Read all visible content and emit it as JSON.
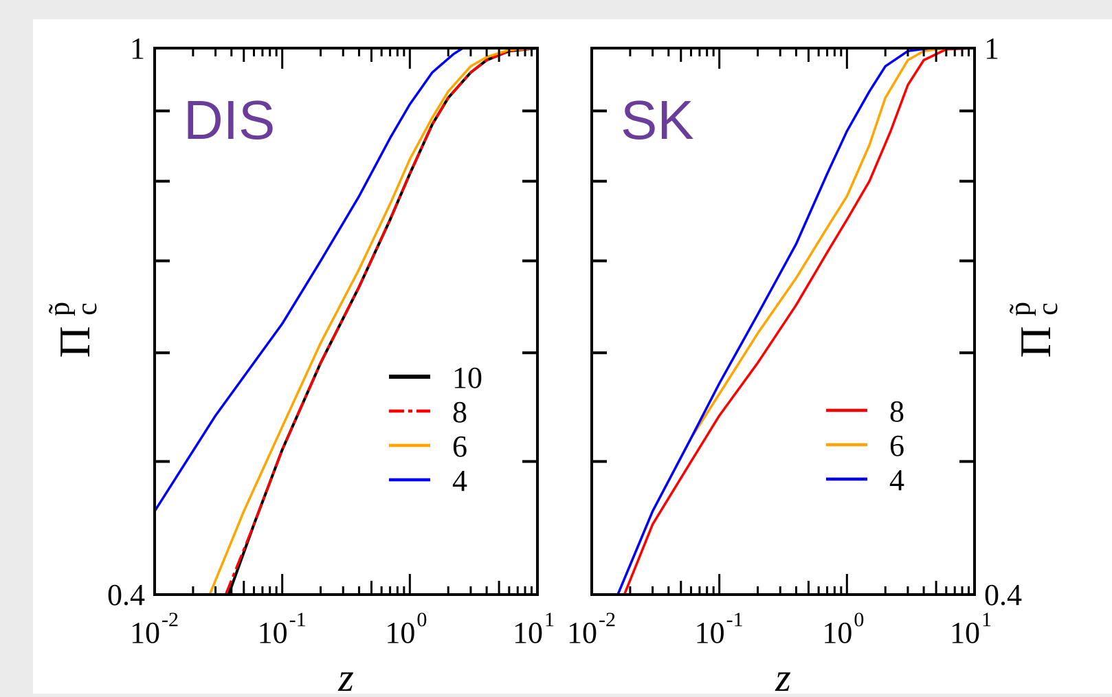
{
  "chart_data": [
    {
      "type": "line",
      "panel_label": "DIS",
      "xlabel": "z",
      "ylabel": "Π",
      "ylabel_sup": "p̃",
      "ylabel_sub": "c",
      "xscale": "log",
      "yscale": "log",
      "xlim": [
        0.01,
        10
      ],
      "ylim": [
        0.4,
        1
      ],
      "xticks": [
        {
          "base": "10",
          "exp": "-2",
          "value": 0.01
        },
        {
          "base": "10",
          "exp": "-1",
          "value": 0.1
        },
        {
          "base": "10",
          "exp": "0",
          "value": 1
        },
        {
          "base": "10",
          "exp": "1",
          "value": 10
        }
      ],
      "yticks": [
        {
          "label": "1",
          "value": 1
        },
        {
          "label": "0.4",
          "value": 0.4
        }
      ],
      "y_axis_side": "left",
      "legend_position": "lower-right",
      "grid": false,
      "series": [
        {
          "name": "10",
          "color": "#000000",
          "dash": "solid",
          "x": [
            0.038,
            0.06,
            0.1,
            0.2,
            0.4,
            0.7,
            1.0,
            1.5,
            2.0,
            3.0,
            4.0,
            6.0,
            10.0
          ],
          "y": [
            0.4,
            0.45,
            0.51,
            0.59,
            0.67,
            0.75,
            0.81,
            0.88,
            0.92,
            0.96,
            0.98,
            0.995,
            1.0
          ]
        },
        {
          "name": "8",
          "color": "#ff0000",
          "dash": "dashdot",
          "x": [
            0.036,
            0.06,
            0.1,
            0.2,
            0.4,
            0.7,
            1.0,
            1.5,
            2.0,
            3.0,
            4.0,
            6.0,
            10.0
          ],
          "y": [
            0.4,
            0.45,
            0.51,
            0.59,
            0.67,
            0.75,
            0.81,
            0.88,
            0.92,
            0.96,
            0.98,
            0.995,
            1.0
          ]
        },
        {
          "name": "6",
          "color": "#ffa500",
          "dash": "solid",
          "x": [
            0.027,
            0.05,
            0.1,
            0.2,
            0.4,
            0.7,
            1.0,
            1.5,
            2.0,
            3.0,
            4.0,
            6.0,
            10.0
          ],
          "y": [
            0.4,
            0.46,
            0.53,
            0.61,
            0.69,
            0.77,
            0.83,
            0.89,
            0.93,
            0.97,
            0.985,
            0.997,
            1.0
          ]
        },
        {
          "name": "4",
          "color": "#0000ff",
          "dash": "solid",
          "x": [
            0.01,
            0.03,
            0.1,
            0.2,
            0.4,
            0.7,
            1.0,
            1.5,
            2.2,
            2.6,
            5.0,
            10.0
          ],
          "y": [
            0.46,
            0.54,
            0.63,
            0.7,
            0.78,
            0.86,
            0.91,
            0.96,
            0.99,
            1.0,
            1.0,
            1.0
          ]
        }
      ]
    },
    {
      "type": "line",
      "panel_label": "SK",
      "xlabel": "z",
      "ylabel": "Π",
      "ylabel_sup": "p̃",
      "ylabel_sub": "c",
      "xscale": "log",
      "yscale": "log",
      "xlim": [
        0.01,
        10
      ],
      "ylim": [
        0.4,
        1
      ],
      "xticks": [
        {
          "base": "10",
          "exp": "-2",
          "value": 0.01
        },
        {
          "base": "10",
          "exp": "-1",
          "value": 0.1
        },
        {
          "base": "10",
          "exp": "0",
          "value": 1
        },
        {
          "base": "10",
          "exp": "1",
          "value": 10
        }
      ],
      "yticks": [
        {
          "label": "1",
          "value": 1
        },
        {
          "label": "0.4",
          "value": 0.4
        }
      ],
      "y_axis_side": "right",
      "legend_position": "lower-right",
      "grid": false,
      "series": [
        {
          "name": "8",
          "color": "#ff0000",
          "dash": "solid",
          "x": [
            0.018,
            0.03,
            0.06,
            0.1,
            0.2,
            0.4,
            0.7,
            1.0,
            1.5,
            2.2,
            3.0,
            4.0,
            6.0,
            10.0
          ],
          "y": [
            0.4,
            0.45,
            0.5,
            0.54,
            0.59,
            0.65,
            0.71,
            0.75,
            0.8,
            0.87,
            0.94,
            0.98,
            0.998,
            1.0
          ]
        },
        {
          "name": "6",
          "color": "#ffa500",
          "dash": "solid",
          "x": [
            0.016,
            0.03,
            0.06,
            0.1,
            0.2,
            0.4,
            0.7,
            1.0,
            1.5,
            2.0,
            3.0,
            4.0,
            6.0,
            10.0
          ],
          "y": [
            0.4,
            0.46,
            0.52,
            0.56,
            0.62,
            0.68,
            0.74,
            0.78,
            0.85,
            0.92,
            0.98,
            0.995,
            1.0,
            1.0
          ]
        },
        {
          "name": "4",
          "color": "#0000ff",
          "dash": "solid",
          "x": [
            0.016,
            0.03,
            0.06,
            0.1,
            0.2,
            0.4,
            0.7,
            1.0,
            1.5,
            2.0,
            3.0,
            4.5,
            10.0
          ],
          "y": [
            0.4,
            0.46,
            0.52,
            0.57,
            0.64,
            0.72,
            0.81,
            0.87,
            0.93,
            0.97,
            0.995,
            1.0,
            1.0
          ]
        }
      ]
    }
  ]
}
